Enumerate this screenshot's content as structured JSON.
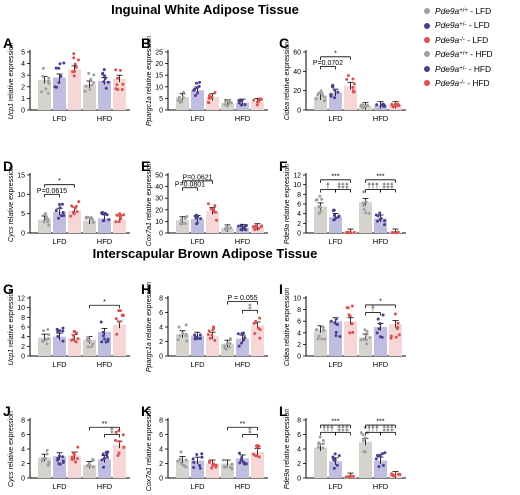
{
  "sections": [
    {
      "title": "Inguinal White Adipose Tissue"
    },
    {
      "title": "Interscapular Brown Adipose Tissue"
    }
  ],
  "legend": [
    {
      "gene": "Pde9a",
      "genotype": "+/+",
      "diet": "LFD",
      "dash": " - ",
      "color": "#a0a0a0"
    },
    {
      "gene": "Pde9a",
      "genotype": "+/-",
      "diet": "LFD",
      "dash": " - ",
      "color": "#4a3f8f"
    },
    {
      "gene": "Pde9a",
      "genotype": "-/-",
      "diet": "LFD",
      "dash": " - ",
      "color": "#d9534f"
    },
    {
      "gene": "Pde9a",
      "genotype": "+/+",
      "diet": "HFD",
      "dash": " - ",
      "color": "#a0a0a0"
    },
    {
      "gene": "Pde9a",
      "genotype": "+/-",
      "diet": "HFD",
      "dash": " - ",
      "color": "#4a3f8f"
    },
    {
      "gene": "Pde9a",
      "genotype": "-/-",
      "diet": "HFD",
      "dash": " - ",
      "color": "#d9534f"
    }
  ],
  "colors": {
    "wt_fill": "#d6d3cf",
    "wt_dot": "#a0a0a0",
    "het_fill": "#bfbde0",
    "het_dot": "#4a3f8f",
    "ko_fill": "#f6d6d6",
    "ko_dot": "#d9534f"
  },
  "chart_data": [
    {
      "panel": "A",
      "type": "bar",
      "ylabel_gene": "Ucp1",
      "ylabel_rest": " relative expression",
      "categories": [
        "LFD",
        "HFD"
      ],
      "ylim": [
        0,
        5
      ],
      "yticks": [
        "0",
        "1",
        "2",
        "3",
        "4",
        "5"
      ],
      "series": [
        {
          "values": [
            2.6,
            2.2
          ]
        },
        {
          "values": [
            2.8,
            2.5
          ]
        },
        {
          "values": [
            3.5,
            2.7
          ]
        }
      ],
      "annotations": []
    },
    {
      "panel": "B",
      "type": "bar",
      "ylabel_gene": "Ppargc1a",
      "ylabel_rest": " relative expression",
      "categories": [
        "LFD",
        "HFD"
      ],
      "ylim": [
        0,
        25
      ],
      "yticks": [
        "0",
        "5",
        "10",
        "15",
        "20",
        "25"
      ],
      "series": [
        {
          "values": [
            5.5,
            3.0
          ]
        },
        {
          "values": [
            8.5,
            3.2
          ]
        },
        {
          "values": [
            5.5,
            3.5
          ]
        }
      ],
      "annotations": []
    },
    {
      "panel": "C",
      "type": "bar",
      "ylabel_gene": "Cidea",
      "ylabel_rest": " relative expression",
      "categories": [
        "LFD",
        "HFD"
      ],
      "ylim": [
        0,
        60
      ],
      "yticks": [
        "0",
        "20",
        "40",
        "60"
      ],
      "series": [
        {
          "values": [
            14,
            4
          ]
        },
        {
          "values": [
            18,
            5
          ]
        },
        {
          "values": [
            25,
            5
          ]
        }
      ],
      "annotations": [
        {
          "text": "*",
          "from": 0,
          "to": 2,
          "level": 55
        },
        {
          "text": "P=0.0702",
          "from": 0,
          "to": 1,
          "level": 45
        }
      ]
    },
    {
      "panel": "D",
      "type": "bar",
      "ylabel_gene": "Cycs",
      "ylabel_rest": " relative expression",
      "categories": [
        "LFD",
        "HFD"
      ],
      "ylim": [
        0,
        15
      ],
      "yticks": [
        "0",
        "5",
        "10",
        "15"
      ],
      "series": [
        {
          "values": [
            3.5,
            3.2
          ]
        },
        {
          "values": [
            5.5,
            3.8
          ]
        },
        {
          "values": [
            5.8,
            3.5
          ]
        }
      ],
      "annotations": [
        {
          "text": "*",
          "from": 0,
          "to": 2,
          "level": 12.5
        },
        {
          "text": "P=0.0615",
          "from": 0,
          "to": 1,
          "level": 10
        }
      ]
    },
    {
      "panel": "E",
      "type": "bar",
      "ylabel_gene": "Cox7a1",
      "ylabel_rest": " relative expression",
      "categories": [
        "LFD",
        "HFD"
      ],
      "ylim": [
        0,
        50
      ],
      "yticks": [
        "0",
        "10",
        "20",
        "30",
        "40",
        "50"
      ],
      "series": [
        {
          "values": [
            11,
            4
          ]
        },
        {
          "values": [
            12,
            4.5
          ]
        },
        {
          "values": [
            19,
            5
          ]
        }
      ],
      "annotations": [
        {
          "text": "P=0.0621",
          "from": 0,
          "to": 2,
          "level": 45
        },
        {
          "text": "P=0.0801",
          "from": 0,
          "to": 1,
          "level": 39
        }
      ]
    },
    {
      "panel": "F",
      "type": "bar",
      "ylabel_gene": "Pde9a",
      "ylabel_rest": " relative expression",
      "categories": [
        "LFD",
        "HFD"
      ],
      "ylim": [
        0,
        12
      ],
      "yticks": [
        "0",
        "2",
        "4",
        "6",
        "8",
        "10",
        "12"
      ],
      "series": [
        {
          "values": [
            5.5,
            6.4
          ]
        },
        {
          "values": [
            3.3,
            3.0
          ]
        },
        {
          "values": [
            0.1,
            0.1
          ]
        }
      ],
      "annotations": [
        {
          "text": "***",
          "from": 0,
          "to": 2,
          "level": 11
        },
        {
          "text": "†",
          "from": 0,
          "to": 1,
          "level": 9
        },
        {
          "text": "‡‡‡",
          "from": 1,
          "to": 2,
          "level": 9
        },
        {
          "text": "***",
          "from": 0,
          "to": 2,
          "level": 11,
          "group": 1
        },
        {
          "text": "†††",
          "from": 0,
          "to": 1,
          "level": 9,
          "group": 1
        },
        {
          "text": "‡‡‡",
          "from": 1,
          "to": 2,
          "level": 9,
          "group": 1
        }
      ]
    },
    {
      "panel": "G",
      "type": "bar",
      "ylabel_gene": "Ucp1",
      "ylabel_rest": " relative expression",
      "categories": [
        "LFD",
        "HFD"
      ],
      "ylim": [
        0,
        12
      ],
      "yticks": [
        "0",
        "2",
        "4",
        "6",
        "8",
        "10",
        "12"
      ],
      "series": [
        {
          "values": [
            3.8,
            3.3
          ]
        },
        {
          "values": [
            4.0,
            5.0
          ]
        },
        {
          "values": [
            3.7,
            6.5
          ]
        }
      ],
      "annotations": [
        {
          "text": "*",
          "from": 0,
          "to": 2,
          "level": 10.5,
          "group": 1
        }
      ]
    },
    {
      "panel": "H",
      "type": "bar",
      "ylabel_gene": "Ppargc1a",
      "ylabel_rest": " relative expression",
      "categories": [
        "LFD",
        "HFD"
      ],
      "ylim": [
        0,
        8
      ],
      "yticks": [
        "0",
        "2",
        "4",
        "6",
        "8"
      ],
      "series": [
        {
          "values": [
            3.0,
            1.7
          ]
        },
        {
          "values": [
            2.8,
            2.4
          ]
        },
        {
          "values": [
            2.8,
            4.2
          ]
        }
      ],
      "annotations": [
        {
          "text": "P = 0.055",
          "from": 0,
          "to": 2,
          "level": 7.5,
          "group": 1
        },
        {
          "text": "‡",
          "from": 1,
          "to": 2,
          "level": 6.3,
          "group": 1
        }
      ]
    },
    {
      "panel": "I",
      "type": "bar",
      "ylabel_gene": "Cidea",
      "ylabel_rest": " relative expression",
      "categories": [
        "LFD",
        "HFD"
      ],
      "ylim": [
        0,
        10
      ],
      "yticks": [
        "0",
        "2",
        "4",
        "6",
        "8",
        "10"
      ],
      "series": [
        {
          "values": [
            4.6,
            3.2
          ]
        },
        {
          "values": [
            6.0,
            5.0
          ]
        },
        {
          "values": [
            6.0,
            5.5
          ]
        }
      ],
      "annotations": [
        {
          "text": "*",
          "from": 0,
          "to": 2,
          "level": 8.8,
          "group": 1
        },
        {
          "text": "†",
          "from": 0,
          "to": 1,
          "level": 7.5,
          "group": 1
        }
      ]
    },
    {
      "panel": "J",
      "type": "bar",
      "ylabel_gene": "Cycs",
      "ylabel_rest": " relative expression",
      "categories": [
        "LFD",
        "HFD"
      ],
      "ylim": [
        0,
        8
      ],
      "yticks": [
        "0",
        "2",
        "4",
        "6",
        "8"
      ],
      "series": [
        {
          "values": [
            2.8,
            1.8
          ]
        },
        {
          "values": [
            3.0,
            2.6
          ]
        },
        {
          "values": [
            3.1,
            4.6
          ]
        }
      ],
      "annotations": [
        {
          "text": "**",
          "from": 0,
          "to": 2,
          "level": 7.0,
          "group": 1
        },
        {
          "text": "‡",
          "from": 1,
          "to": 2,
          "level": 6.0,
          "group": 1
        }
      ]
    },
    {
      "panel": "K",
      "type": "bar",
      "ylabel_gene": "Cox7a1",
      "ylabel_rest": " relative expression",
      "categories": [
        "LFD",
        "HFD"
      ],
      "ylim": [
        0,
        8
      ],
      "yticks": [
        "0",
        "2",
        "4",
        "6",
        "8"
      ],
      "series": [
        {
          "values": [
            2.5,
            2.0
          ]
        },
        {
          "values": [
            2.4,
            2.7
          ]
        },
        {
          "values": [
            2.0,
            3.6
          ]
        }
      ],
      "annotations": [
        {
          "text": "**",
          "from": 0,
          "to": 2,
          "level": 7.0,
          "group": 1
        },
        {
          "text": "‡",
          "from": 1,
          "to": 2,
          "level": 6.0,
          "group": 1
        }
      ]
    },
    {
      "panel": "L",
      "type": "bar",
      "ylabel_gene": "Pde9a",
      "ylabel_rest": " relative expression",
      "categories": [
        "LFD",
        "HFD"
      ],
      "ylim": [
        0,
        8
      ],
      "yticks": [
        "0",
        "2",
        "4",
        "6",
        "8"
      ],
      "series": [
        {
          "values": [
            4.2,
            5.0
          ]
        },
        {
          "values": [
            2.3,
            2.4
          ]
        },
        {
          "values": [
            0.2,
            0.4
          ]
        }
      ],
      "annotations": [
        {
          "text": "***",
          "from": 0,
          "to": 2,
          "level": 7.3
        },
        {
          "text": "†††",
          "from": 0,
          "to": 1,
          "level": 6.3
        },
        {
          "text": "‡‡‡",
          "from": 1,
          "to": 2,
          "level": 6.3
        },
        {
          "text": "***",
          "from": 0,
          "to": 2,
          "level": 7.3,
          "group": 1
        },
        {
          "text": "†††",
          "from": 0,
          "to": 1,
          "level": 6.3,
          "group": 1
        },
        {
          "text": "‡‡‡",
          "from": 1,
          "to": 2,
          "level": 6.3,
          "group": 1
        }
      ]
    }
  ]
}
